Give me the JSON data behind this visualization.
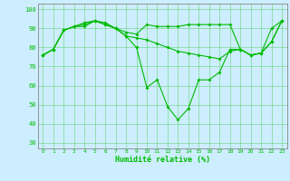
{
  "x": [
    0,
    1,
    2,
    3,
    4,
    5,
    6,
    7,
    8,
    9,
    10,
    11,
    12,
    13,
    14,
    15,
    16,
    17,
    18,
    19,
    20,
    21,
    22,
    23
  ],
  "s1": [
    76,
    79,
    89,
    91,
    93,
    94,
    93,
    90,
    86,
    80,
    59,
    63,
    49,
    42,
    48,
    63,
    63,
    67,
    79,
    79,
    76,
    77,
    90,
    94
  ],
  "s2": [
    76,
    79,
    89,
    91,
    92,
    94,
    92,
    90,
    86,
    85,
    84,
    82,
    80,
    78,
    77,
    76,
    75,
    74,
    78,
    79,
    76,
    77,
    83,
    94
  ],
  "s3": [
    76,
    79,
    89,
    91,
    91,
    94,
    92,
    90,
    88,
    87,
    92,
    91,
    91,
    91,
    92,
    92,
    92,
    92,
    92,
    79,
    76,
    77,
    83,
    94
  ],
  "line_color": "#00bb00",
  "bg_color": "#cceeff",
  "grid_color": "#44cc44",
  "xlabel": "Humidité relative (%)",
  "ylim": [
    27,
    103
  ],
  "yticks": [
    30,
    40,
    50,
    60,
    70,
    80,
    90,
    100
  ],
  "xlim": [
    -0.5,
    23.5
  ]
}
